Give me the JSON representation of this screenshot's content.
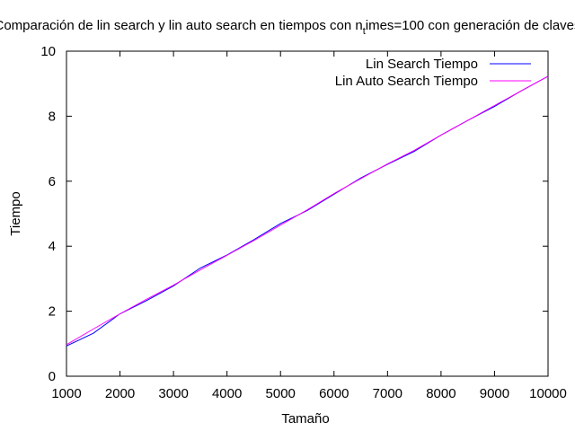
{
  "chart_data": {
    "type": "line",
    "title_parts": {
      "pre": "Comparación de lin search y lin auto search en tiempos con n",
      "sub": "t",
      "post": "imes=100 con generación de claves"
    },
    "xlabel": "Tamaño",
    "ylabel": "Tiempo",
    "xlim": [
      1000,
      10000
    ],
    "ylim": [
      0,
      10
    ],
    "xticks": [
      1000,
      2000,
      3000,
      4000,
      5000,
      6000,
      7000,
      8000,
      9000,
      10000
    ],
    "yticks": [
      0,
      2,
      4,
      6,
      8,
      10
    ],
    "grid": false,
    "legend_position": "top-right",
    "x": [
      1000,
      1500,
      2000,
      2500,
      3000,
      3500,
      4000,
      4500,
      5000,
      5500,
      6000,
      6500,
      7000,
      7500,
      8000,
      8500,
      9000,
      9500,
      10000
    ],
    "series": [
      {
        "name": "Lin Search Tiempo",
        "color": "#0000ff",
        "values": [
          0.93,
          1.32,
          1.92,
          2.33,
          2.78,
          3.33,
          3.73,
          4.2,
          4.7,
          5.1,
          5.6,
          6.1,
          6.52,
          6.92,
          7.42,
          7.87,
          8.3,
          8.78,
          9.23
        ]
      },
      {
        "name": "Lin Auto Search Tiempo",
        "color": "#ff00ff",
        "values": [
          0.97,
          1.45,
          1.92,
          2.37,
          2.8,
          3.27,
          3.72,
          4.17,
          4.65,
          5.12,
          5.62,
          6.08,
          6.53,
          6.95,
          7.42,
          7.87,
          8.33,
          8.78,
          9.23
        ]
      }
    ]
  }
}
